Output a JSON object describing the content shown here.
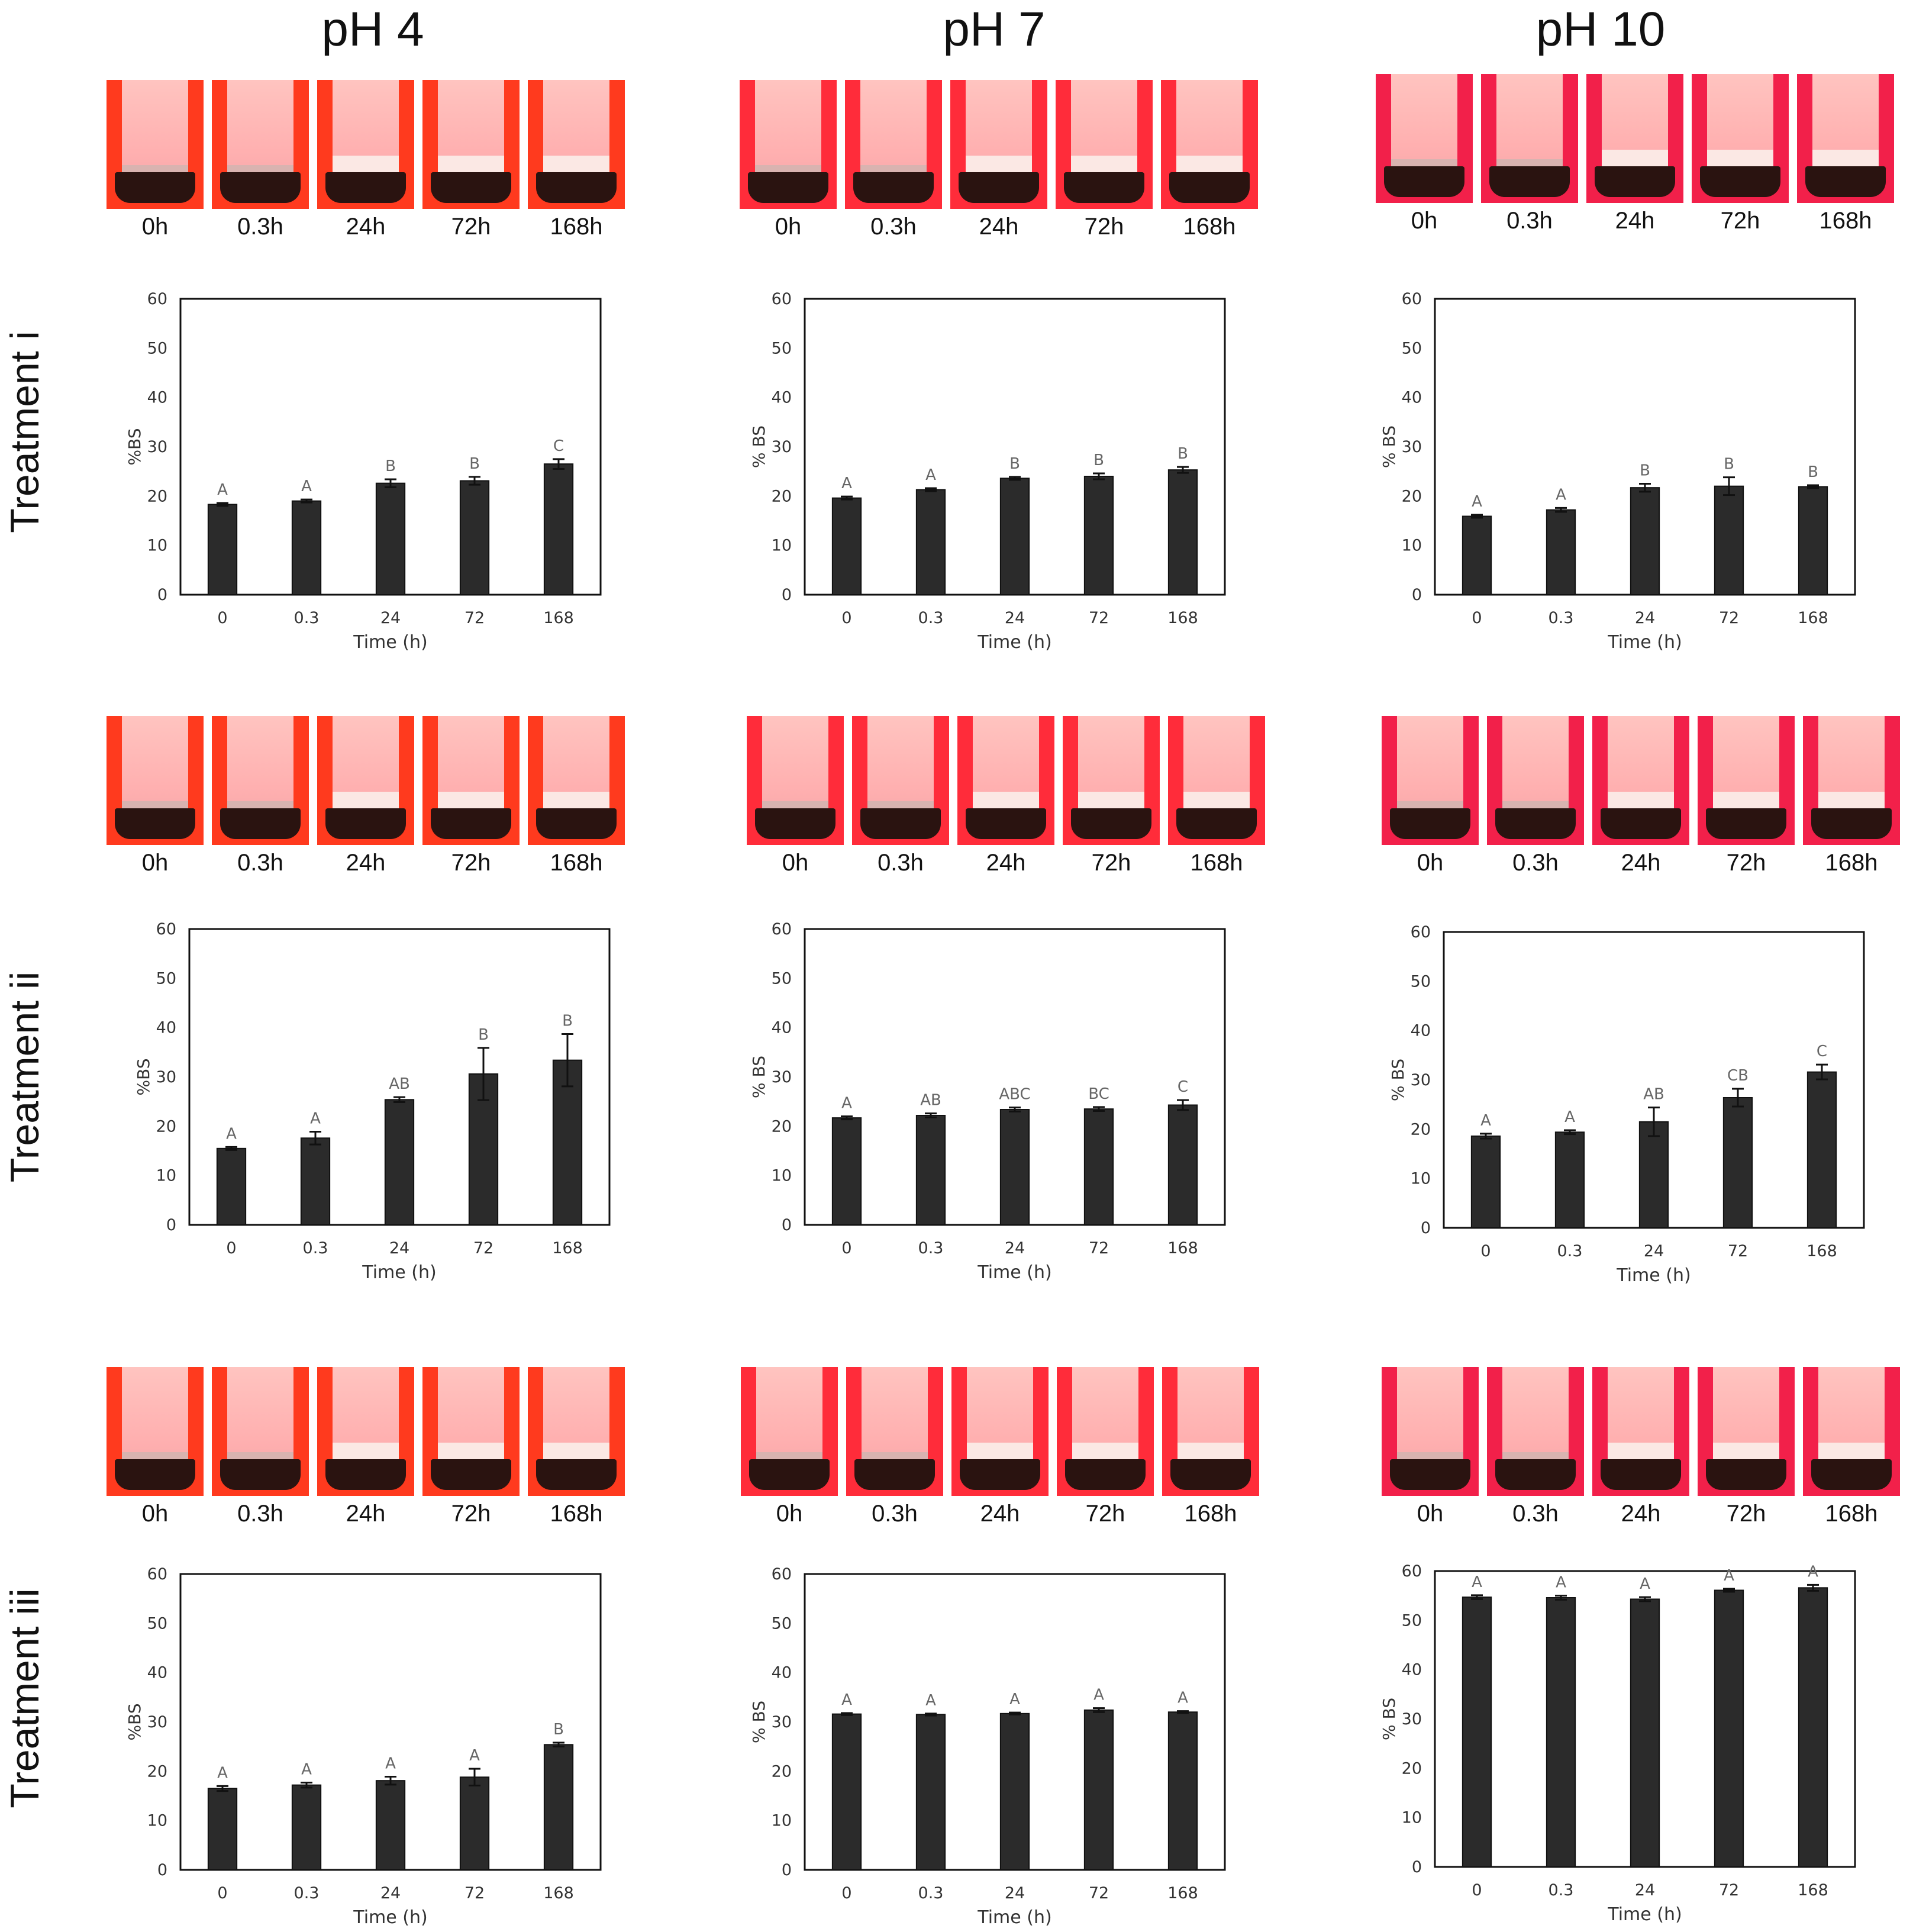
{
  "column_titles": [
    "pH 4",
    "pH 7",
    "pH 10"
  ],
  "row_titles": [
    "Treatment i",
    "Treatment ii",
    "Treatment iii"
  ],
  "time_labels": [
    "0h",
    "0.3h",
    "24h",
    "72h",
    "168h"
  ],
  "chart_data": [
    {
      "type": "bar",
      "id": "t1_ph4",
      "title": "",
      "xlabel": "Time (h)",
      "ylabel": "%BS",
      "ylim": [
        0,
        60
      ],
      "yticks": [
        0,
        10,
        20,
        30,
        40,
        50,
        60
      ],
      "categories": [
        "0",
        "0.3",
        "24",
        "72",
        "168"
      ],
      "values": [
        18.3,
        19.0,
        22.6,
        23.1,
        26.5
      ],
      "errors": [
        0.3,
        0.3,
        0.8,
        0.8,
        1.0
      ],
      "letters": [
        "A",
        "A",
        "B",
        "B",
        "C"
      ]
    },
    {
      "type": "bar",
      "id": "t1_ph7",
      "title": "",
      "xlabel": "Time (h)",
      "ylabel": "% BS",
      "ylim": [
        0,
        60
      ],
      "yticks": [
        0,
        10,
        20,
        30,
        40,
        50,
        60
      ],
      "categories": [
        "0",
        "0.3",
        "24",
        "72",
        "168"
      ],
      "values": [
        19.6,
        21.3,
        23.6,
        24.0,
        25.3
      ],
      "errors": [
        0.3,
        0.3,
        0.3,
        0.6,
        0.6
      ],
      "letters": [
        "A",
        "A",
        "B",
        "B",
        "B"
      ]
    },
    {
      "type": "bar",
      "id": "t1_ph10",
      "title": "",
      "xlabel": "Time (h)",
      "ylabel": "% BS",
      "ylim": [
        0,
        60
      ],
      "yticks": [
        0,
        10,
        20,
        30,
        40,
        50,
        60
      ],
      "categories": [
        "0",
        "0.3",
        "24",
        "72",
        "168"
      ],
      "values": [
        15.9,
        17.2,
        21.7,
        22.0,
        21.9
      ],
      "errors": [
        0.3,
        0.4,
        0.8,
        1.8,
        0.3
      ],
      "letters": [
        "A",
        "A",
        "B",
        "B",
        "B"
      ]
    },
    {
      "type": "bar",
      "id": "t2_ph4",
      "title": "",
      "xlabel": "Time (h)",
      "ylabel": "%BS",
      "ylim": [
        0,
        60
      ],
      "yticks": [
        0,
        10,
        20,
        30,
        40,
        50,
        60
      ],
      "categories": [
        "0",
        "0.3",
        "24",
        "72",
        "168"
      ],
      "values": [
        15.5,
        17.6,
        25.4,
        30.6,
        33.4
      ],
      "errors": [
        0.3,
        1.3,
        0.5,
        5.3,
        5.3
      ],
      "letters": [
        "A",
        "A",
        "AB",
        "B",
        "B"
      ]
    },
    {
      "type": "bar",
      "id": "t2_ph7",
      "title": "",
      "xlabel": "Time (h)",
      "ylabel": "% BS",
      "ylim": [
        0,
        60
      ],
      "yticks": [
        0,
        10,
        20,
        30,
        40,
        50,
        60
      ],
      "categories": [
        "0",
        "0.3",
        "24",
        "72",
        "168"
      ],
      "values": [
        21.7,
        22.2,
        23.4,
        23.5,
        24.3
      ],
      "errors": [
        0.3,
        0.4,
        0.4,
        0.4,
        1.0
      ],
      "letters": [
        "A",
        "AB",
        "ABC",
        "BC",
        "C"
      ]
    },
    {
      "type": "bar",
      "id": "t2_ph10",
      "title": "",
      "xlabel": "Time (h)",
      "ylabel": "% BS",
      "ylim": [
        0,
        60
      ],
      "yticks": [
        0,
        10,
        20,
        30,
        40,
        50,
        60
      ],
      "categories": [
        "0",
        "0.3",
        "24",
        "72",
        "168"
      ],
      "values": [
        18.6,
        19.4,
        21.5,
        26.4,
        31.6
      ],
      "errors": [
        0.5,
        0.4,
        2.9,
        1.8,
        1.5
      ],
      "letters": [
        "A",
        "A",
        "AB",
        "CB",
        "C"
      ]
    },
    {
      "type": "bar",
      "id": "t3_ph4",
      "title": "",
      "xlabel": "Time (h)",
      "ylabel": "%BS",
      "ylim": [
        0,
        60
      ],
      "yticks": [
        0,
        10,
        20,
        30,
        40,
        50,
        60
      ],
      "categories": [
        "0",
        "0.3",
        "24",
        "72",
        "168"
      ],
      "values": [
        16.5,
        17.2,
        18.1,
        18.8,
        25.4
      ],
      "errors": [
        0.5,
        0.5,
        0.8,
        1.7,
        0.4
      ],
      "letters": [
        "A",
        "A",
        "A",
        "A",
        "B"
      ]
    },
    {
      "type": "bar",
      "id": "t3_ph7",
      "title": "",
      "xlabel": "Time (h)",
      "ylabel": "% BS",
      "ylim": [
        0,
        60
      ],
      "yticks": [
        0,
        10,
        20,
        30,
        40,
        50,
        60
      ],
      "categories": [
        "0",
        "0.3",
        "24",
        "72",
        "168"
      ],
      "values": [
        31.6,
        31.5,
        31.7,
        32.4,
        32.0
      ],
      "errors": [
        0.2,
        0.2,
        0.2,
        0.4,
        0.2
      ],
      "letters": [
        "A",
        "A",
        "A",
        "A",
        "A"
      ]
    },
    {
      "type": "bar",
      "id": "t3_ph10",
      "title": "",
      "xlabel": "Time (h)",
      "ylabel": "% BS",
      "ylim": [
        0,
        60
      ],
      "yticks": [
        0,
        10,
        20,
        30,
        40,
        50,
        60
      ],
      "categories": [
        "0",
        "0.3",
        "24",
        "72",
        "168"
      ],
      "values": [
        54.7,
        54.6,
        54.3,
        56.1,
        56.6
      ],
      "errors": [
        0.4,
        0.4,
        0.4,
        0.3,
        0.6
      ],
      "letters": [
        "A",
        "A",
        "A",
        "A",
        "A"
      ]
    }
  ]
}
